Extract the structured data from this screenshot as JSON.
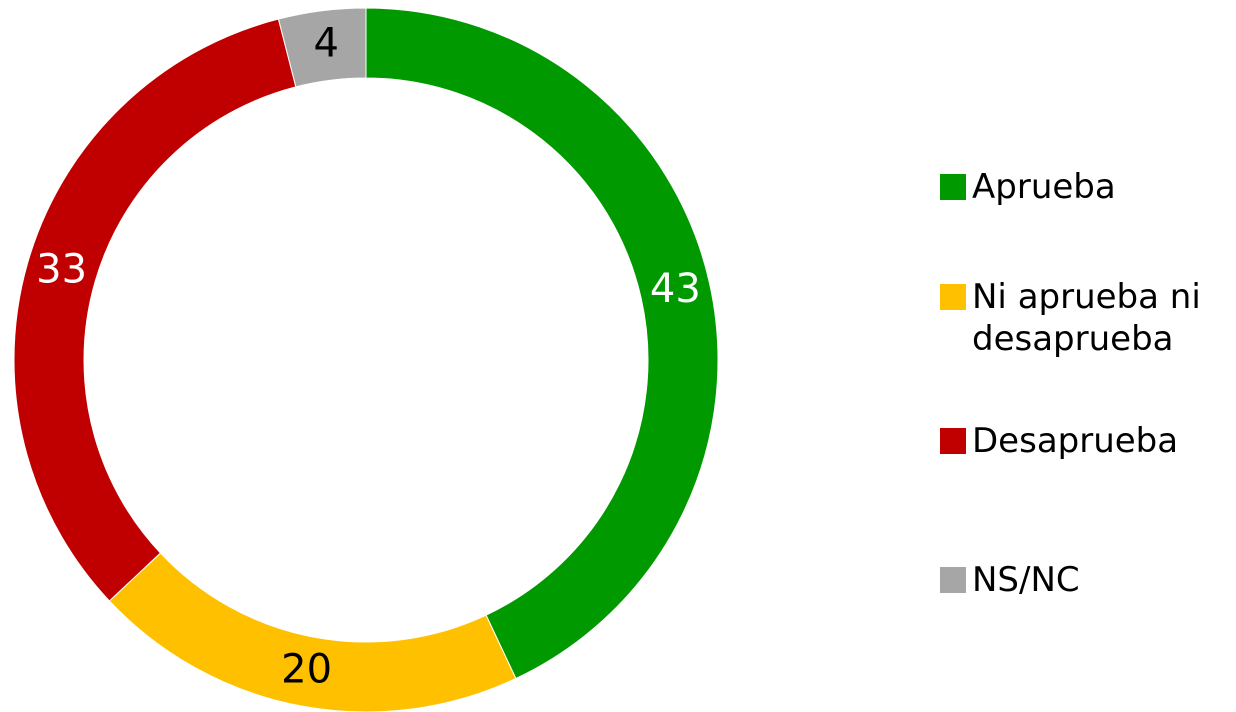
{
  "chart_data": {
    "type": "donut",
    "categories": [
      "Aprueba",
      "Ni aprueba ni desaprueba",
      "Desaprueba",
      "NS/NC"
    ],
    "values": [
      43,
      20,
      33,
      4
    ],
    "colors": [
      "#009900",
      "#ffc000",
      "#c00000",
      "#a6a6a6"
    ],
    "legend": "right"
  }
}
